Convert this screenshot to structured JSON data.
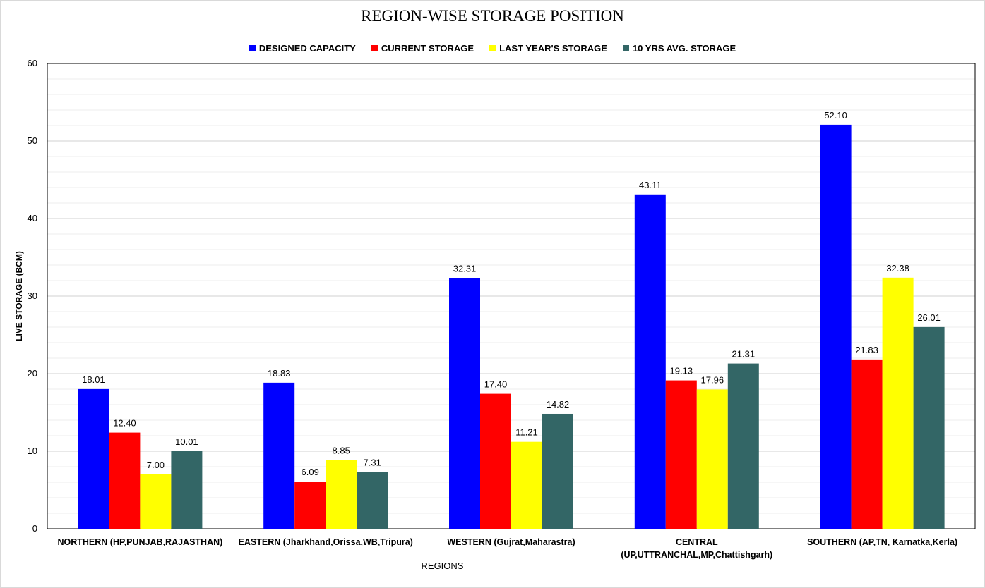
{
  "chart_data": {
    "type": "bar",
    "title": "REGION-WISE STORAGE POSITION",
    "xlabel": "REGIONS",
    "ylabel": "LIVE STORAGE (BCM)",
    "ylim": [
      0,
      60
    ],
    "yticks": [
      "0",
      "10",
      "20",
      "30",
      "40",
      "50",
      "60"
    ],
    "grid": true,
    "legend_position": "top",
    "categories": [
      [
        "NORTHERN (HP,PUNJAB,RAJASTHAN)"
      ],
      [
        "EASTERN (Jharkhand,Orissa,WB,Tripura)"
      ],
      [
        "WESTERN (Gujrat,Maharastra)"
      ],
      [
        "CENTRAL",
        "(UP,UTTRANCHAL,MP,Chattishgarh)"
      ],
      [
        "SOUTHERN (AP,TN, Karnatka,Kerla)"
      ]
    ],
    "series": [
      {
        "name": "DESIGNED CAPACITY",
        "color": "#0000ff",
        "values": [
          18.01,
          18.83,
          32.31,
          43.11,
          52.1
        ],
        "labels": [
          "18.01",
          "18.83",
          "32.31",
          "43.11",
          "52.10"
        ]
      },
      {
        "name": "CURRENT STORAGE",
        "color": "#ff0000",
        "values": [
          12.4,
          6.09,
          17.4,
          19.13,
          21.83
        ],
        "labels": [
          "12.40",
          "6.09",
          "17.40",
          "19.13",
          "21.83"
        ]
      },
      {
        "name": "LAST YEAR'S STORAGE",
        "color": "#ffff00",
        "values": [
          7.0,
          8.85,
          11.21,
          17.96,
          32.38
        ],
        "labels": [
          "7.00",
          "8.85",
          "11.21",
          "17.96",
          "32.38"
        ]
      },
      {
        "name": "10 YRS AVG. STORAGE",
        "color": "#336666",
        "values": [
          10.01,
          7.31,
          14.82,
          21.31,
          26.01
        ],
        "labels": [
          "10.01",
          "7.31",
          "14.82",
          "21.31",
          "26.01"
        ]
      }
    ]
  }
}
